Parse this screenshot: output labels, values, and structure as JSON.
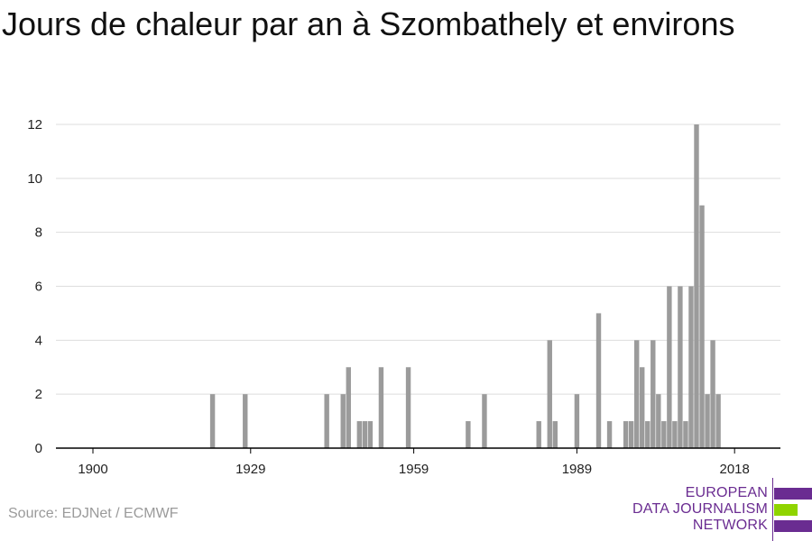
{
  "title": "Jours de chaleur par an à Szombathely et environs",
  "source": "Source: EDJNet / ECMWF",
  "logo": {
    "lines": [
      "EUROPEAN",
      "DATA JOURNALISM",
      "NETWORK"
    ],
    "colors": {
      "purple": "#6a2c91",
      "green": "#8fd400"
    }
  },
  "colors": {
    "bar": "#9b9b9b",
    "grid": "#dddddd",
    "axis": "#000000"
  },
  "chart_data": {
    "type": "bar",
    "title": "Jours de chaleur par an à Szombathely et environs",
    "xlabel": "",
    "ylabel": "",
    "xlim": [
      1899,
      2019
    ],
    "ylim": [
      0,
      12
    ],
    "x_ticks": [
      1900,
      1929,
      1959,
      1989,
      2018
    ],
    "y_ticks": [
      0,
      2,
      4,
      6,
      8,
      10,
      12
    ],
    "grid": true,
    "legend": "none",
    "x": [
      1922,
      1928,
      1943,
      1946,
      1947,
      1949,
      1950,
      1951,
      1953,
      1958,
      1969,
      1972,
      1982,
      1984,
      1985,
      1989,
      1993,
      1995,
      1998,
      1999,
      2000,
      2001,
      2002,
      2003,
      2004,
      2005,
      2006,
      2007,
      2008,
      2009,
      2010,
      2011,
      2012,
      2013,
      2014,
      2015,
      2016,
      2017
    ],
    "values": [
      2,
      2,
      2,
      2,
      3,
      1,
      1,
      1,
      3,
      3,
      1,
      2,
      1,
      4,
      1,
      2,
      5,
      1,
      1,
      1,
      4,
      3,
      1,
      4,
      2,
      1,
      6,
      1,
      6,
      1,
      6,
      12,
      9,
      2,
      4,
      2,
      0,
      0
    ]
  }
}
